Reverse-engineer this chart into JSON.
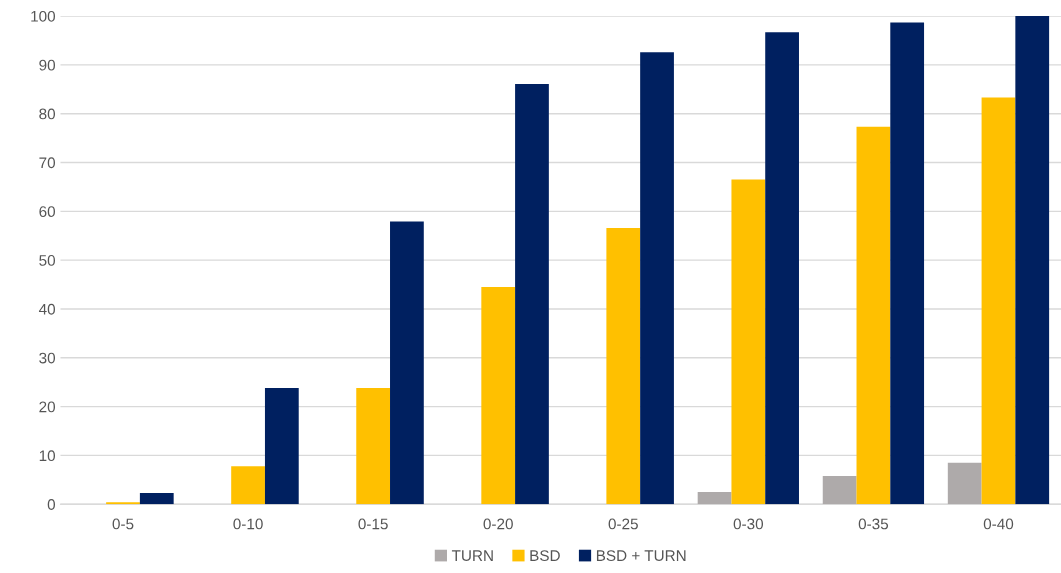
{
  "chart_data": {
    "type": "bar",
    "categories": [
      "0-5",
      "0-10",
      "0-15",
      "0-20",
      "0-25",
      "0-30",
      "0-35",
      "0-40"
    ],
    "series": [
      {
        "name": "TURN",
        "color": "#aeaaaa",
        "values": [
          0,
          0,
          0,
          0,
          0,
          2.5,
          5.8,
          8.5
        ]
      },
      {
        "name": "BSD",
        "color": "#ffc000",
        "values": [
          0.4,
          7.8,
          23.8,
          44.5,
          56.6,
          66.5,
          77.3,
          83.3
        ]
      },
      {
        "name": "BSD + TURN",
        "color": "#002060",
        "values": [
          2.3,
          23.8,
          57.9,
          86.1,
          92.6,
          96.7,
          98.7,
          100
        ]
      }
    ],
    "ylim": [
      0,
      100
    ],
    "yticks": [
      0,
      10,
      20,
      30,
      40,
      50,
      60,
      70,
      80,
      90,
      100
    ],
    "grid": "y",
    "legend": "bottom"
  }
}
